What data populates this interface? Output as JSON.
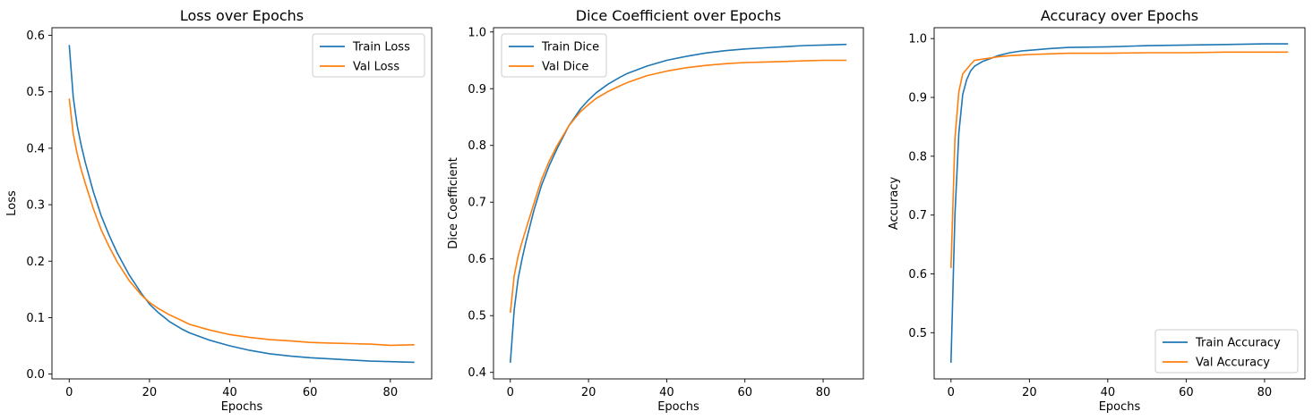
{
  "colors": {
    "train": "#1f77b4",
    "val": "#ff7f0e"
  },
  "chart_data": [
    {
      "type": "line",
      "title": "Loss over Epochs",
      "xlabel": "Epochs",
      "ylabel": "Loss",
      "xlim": [
        -4.3,
        90.3
      ],
      "ylim": [
        -0.0085,
        0.6135
      ],
      "xticks": [
        0,
        20,
        40,
        60,
        80
      ],
      "xtick_labels": [
        "0",
        "20",
        "40",
        "60",
        "80"
      ],
      "yticks": [
        0.0,
        0.1,
        0.2,
        0.3,
        0.4,
        0.5,
        0.6
      ],
      "ytick_labels": [
        "0.0",
        "0.1",
        "0.2",
        "0.3",
        "0.4",
        "0.5",
        "0.6"
      ],
      "legend_loc": "upper right",
      "grid": false,
      "series": [
        {
          "name": "Train Loss",
          "color": "#1f77b4",
          "x": [
            0,
            1,
            2,
            3,
            4,
            6,
            8,
            10,
            12,
            15,
            18,
            20,
            22,
            25,
            28,
            30,
            35,
            40,
            45,
            50,
            55,
            60,
            65,
            70,
            75,
            80,
            86
          ],
          "y": [
            0.583,
            0.49,
            0.44,
            0.405,
            0.375,
            0.323,
            0.28,
            0.245,
            0.214,
            0.175,
            0.143,
            0.124,
            0.11,
            0.093,
            0.08,
            0.073,
            0.06,
            0.05,
            0.042,
            0.036,
            0.032,
            0.029,
            0.027,
            0.025,
            0.023,
            0.022,
            0.021
          ]
        },
        {
          "name": "Val Loss",
          "color": "#ff7f0e",
          "x": [
            0,
            1,
            2,
            3,
            4,
            6,
            8,
            10,
            12,
            15,
            18,
            20,
            22,
            25,
            28,
            30,
            35,
            40,
            45,
            50,
            55,
            60,
            65,
            70,
            75,
            80,
            86
          ],
          "y": [
            0.488,
            0.425,
            0.39,
            0.362,
            0.338,
            0.293,
            0.255,
            0.225,
            0.198,
            0.165,
            0.14,
            0.127,
            0.117,
            0.105,
            0.095,
            0.088,
            0.078,
            0.07,
            0.065,
            0.061,
            0.059,
            0.056,
            0.055,
            0.054,
            0.053,
            0.051,
            0.052
          ]
        }
      ]
    },
    {
      "type": "line",
      "title": "Dice Coefficient over Epochs",
      "xlabel": "Epochs",
      "ylabel": "Dice Coefficient",
      "xlim": [
        -4.3,
        90.3
      ],
      "ylim": [
        0.3885,
        1.0075
      ],
      "xticks": [
        0,
        20,
        40,
        60,
        80
      ],
      "xtick_labels": [
        "0",
        "20",
        "40",
        "60",
        "80"
      ],
      "yticks": [
        0.4,
        0.5,
        0.6,
        0.7,
        0.8,
        0.9,
        1.0
      ],
      "ytick_labels": [
        "0.4",
        "0.5",
        "0.6",
        "0.7",
        "0.8",
        "0.9",
        "1.0"
      ],
      "legend_loc": "upper left",
      "grid": false,
      "series": [
        {
          "name": "Train Dice",
          "color": "#1f77b4",
          "x": [
            0,
            1,
            2,
            3,
            4,
            6,
            8,
            10,
            12,
            15,
            18,
            20,
            22,
            25,
            28,
            30,
            35,
            40,
            45,
            50,
            55,
            60,
            65,
            70,
            75,
            80,
            86
          ],
          "y": [
            0.417,
            0.51,
            0.565,
            0.6,
            0.63,
            0.685,
            0.73,
            0.765,
            0.795,
            0.835,
            0.865,
            0.88,
            0.893,
            0.908,
            0.92,
            0.927,
            0.94,
            0.95,
            0.957,
            0.963,
            0.967,
            0.97,
            0.972,
            0.974,
            0.976,
            0.977,
            0.978
          ]
        },
        {
          "name": "Val Dice",
          "color": "#ff7f0e",
          "x": [
            0,
            1,
            2,
            3,
            4,
            6,
            8,
            10,
            12,
            15,
            18,
            20,
            22,
            25,
            28,
            30,
            35,
            40,
            45,
            50,
            55,
            60,
            65,
            70,
            75,
            80,
            86
          ],
          "y": [
            0.505,
            0.57,
            0.605,
            0.63,
            0.652,
            0.697,
            0.74,
            0.773,
            0.8,
            0.835,
            0.86,
            0.872,
            0.883,
            0.895,
            0.905,
            0.911,
            0.923,
            0.931,
            0.937,
            0.941,
            0.944,
            0.946,
            0.947,
            0.948,
            0.949,
            0.95,
            0.95
          ]
        }
      ]
    },
    {
      "type": "line",
      "title": "Accuracy over Epochs",
      "xlabel": "Epochs",
      "ylabel": "Accuracy",
      "xlim": [
        -4.3,
        90.3
      ],
      "ylim": [
        0.4215,
        1.0185
      ],
      "xticks": [
        0,
        20,
        40,
        60,
        80
      ],
      "xtick_labels": [
        "0",
        "20",
        "40",
        "60",
        "80"
      ],
      "yticks": [
        0.5,
        0.6,
        0.7,
        0.8,
        0.9,
        1.0
      ],
      "ytick_labels": [
        "0.5",
        "0.6",
        "0.7",
        "0.8",
        "0.9",
        "1.0"
      ],
      "legend_loc": "lower right",
      "grid": false,
      "series": [
        {
          "name": "Train Accuracy",
          "color": "#1f77b4",
          "x": [
            0,
            1,
            2,
            3,
            4,
            5,
            6,
            8,
            10,
            12,
            15,
            18,
            20,
            25,
            30,
            40,
            50,
            60,
            70,
            80,
            86
          ],
          "y": [
            0.449,
            0.7,
            0.84,
            0.905,
            0.93,
            0.945,
            0.953,
            0.961,
            0.966,
            0.971,
            0.976,
            0.979,
            0.98,
            0.983,
            0.985,
            0.986,
            0.988,
            0.989,
            0.99,
            0.991,
            0.991
          ]
        },
        {
          "name": "Val Accuracy",
          "color": "#ff7f0e",
          "x": [
            0,
            1,
            2,
            3,
            4,
            5,
            6,
            8,
            10,
            12,
            15,
            18,
            20,
            25,
            30,
            40,
            50,
            60,
            70,
            80,
            86
          ],
          "y": [
            0.61,
            0.83,
            0.91,
            0.94,
            0.948,
            0.956,
            0.963,
            0.965,
            0.967,
            0.969,
            0.971,
            0.972,
            0.973,
            0.974,
            0.975,
            0.975,
            0.976,
            0.976,
            0.977,
            0.977,
            0.977
          ]
        }
      ]
    }
  ]
}
